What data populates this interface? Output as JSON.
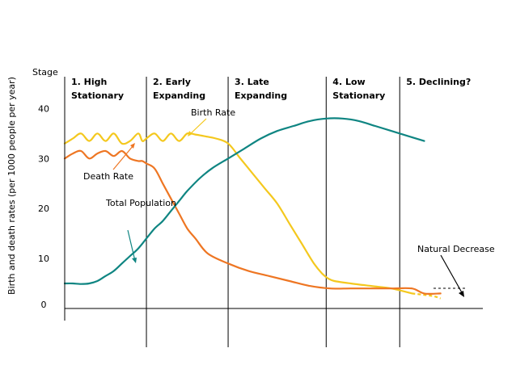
{
  "chart_data": {
    "type": "line",
    "stage_axis_label": "Stage",
    "ylabel": "Birth and death rates (per 1000 people per year)",
    "ylim": [
      0,
      42
    ],
    "yticks": [
      0,
      10,
      20,
      30,
      40
    ],
    "stages": [
      {
        "line1": "1. High",
        "line2": "Stationary",
        "x_start": 0
      },
      {
        "line1": "2. Early",
        "line2": "Expanding",
        "x_start": 20
      },
      {
        "line1": "3. Late",
        "line2": "Expanding",
        "x_start": 40
      },
      {
        "line1": "4. Low",
        "line2": "Stationary",
        "x_start": 64
      },
      {
        "line1": "5. Declining?",
        "line2": "",
        "x_start": 82
      }
    ],
    "xlim": [
      0,
      97
    ],
    "series": [
      {
        "name": "Birth Rate",
        "color": "#f4c81e",
        "x": [
          0,
          2,
          4,
          6,
          8,
          10,
          12,
          14,
          16,
          18,
          19,
          20,
          22,
          24,
          26,
          28,
          30,
          32,
          34,
          37,
          40,
          43,
          46,
          49,
          52,
          55,
          58,
          61,
          63,
          64.5,
          66,
          70,
          75,
          80,
          85,
          90,
          92
        ],
        "values": [
          33,
          34,
          35,
          33.5,
          35,
          33.5,
          35,
          33,
          33.5,
          35,
          33.5,
          34,
          35,
          33.5,
          35,
          33.5,
          35,
          34.8,
          34.5,
          34,
          33,
          30,
          27,
          24,
          21,
          17,
          13,
          9,
          7,
          6,
          5.5,
          5,
          4.5,
          4,
          3,
          2.5,
          2
        ],
        "dashed_from": 85
      },
      {
        "name": "Death Rate",
        "color": "#ee7623",
        "x": [
          0,
          2,
          4,
          6,
          8,
          10,
          12,
          14,
          16,
          18,
          19,
          20,
          22,
          24,
          26,
          28,
          30,
          32,
          35,
          40,
          45,
          50,
          55,
          60,
          65,
          70,
          75,
          80,
          85,
          88,
          92
        ],
        "values": [
          30,
          31,
          31.5,
          30,
          31,
          31.5,
          30.5,
          31.5,
          30,
          29.5,
          29.5,
          29,
          28,
          25,
          22,
          19,
          16,
          14,
          11,
          9,
          7.5,
          6.5,
          5.5,
          4.5,
          4,
          4,
          4,
          4,
          4,
          3,
          3
        ]
      },
      {
        "name": "Total Population",
        "color": "#0f8582",
        "x": [
          0,
          2,
          4,
          6,
          8,
          10,
          12,
          14,
          16,
          18,
          20,
          22,
          24,
          26,
          28,
          30,
          33,
          36,
          40,
          44,
          48,
          52,
          56,
          60,
          64,
          68,
          72,
          76,
          80,
          84,
          88
        ],
        "values": [
          5,
          5,
          4.9,
          5,
          5.5,
          6.5,
          7.5,
          9,
          10.5,
          12,
          14,
          16,
          17.5,
          19.5,
          21.5,
          23.5,
          26,
          28,
          30,
          32,
          34,
          35.5,
          36.5,
          37.5,
          38,
          38,
          37.5,
          36.5,
          35.5,
          34.5,
          33.5
        ]
      }
    ],
    "annotations": [
      {
        "text": "Birth Rate",
        "series": "Birth Rate"
      },
      {
        "text": "Death Rate",
        "series": "Death Rate"
      },
      {
        "text": "Total Population",
        "series": "Total Population"
      },
      {
        "text": "Natural Decrease",
        "series": "Natural Decrease"
      }
    ]
  }
}
